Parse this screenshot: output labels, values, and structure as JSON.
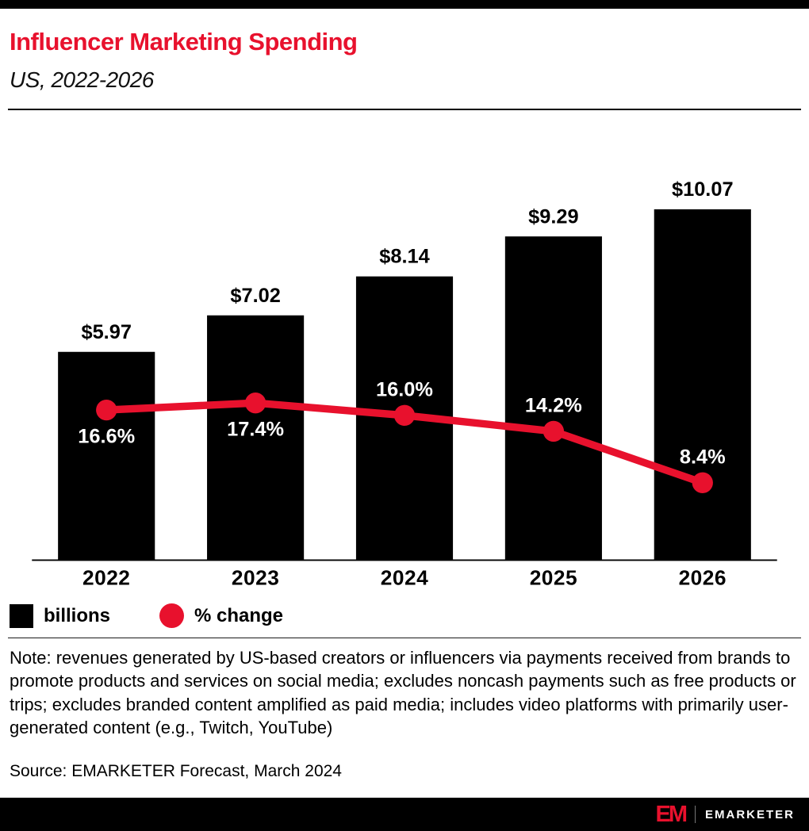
{
  "header": {
    "title": "Influencer Marketing Spending",
    "subtitle": "US, 2022-2026"
  },
  "chart_data": {
    "type": "bar",
    "title": "Influencer Marketing Spending, US, 2022-2026",
    "categories": [
      "2022",
      "2023",
      "2024",
      "2025",
      "2026"
    ],
    "series": [
      {
        "name": "billions",
        "type": "bar",
        "values": [
          5.97,
          7.02,
          8.14,
          9.29,
          10.07
        ],
        "labels": [
          "$5.97",
          "$7.02",
          "$8.14",
          "$9.29",
          "$10.07"
        ],
        "color": "#000000"
      },
      {
        "name": "% change",
        "type": "line",
        "values": [
          16.6,
          17.4,
          16.0,
          14.2,
          8.4
        ],
        "labels": [
          "16.6%",
          "17.4%",
          "16.0%",
          "14.2%",
          "8.4%"
        ],
        "label_positions": [
          "below",
          "below",
          "above",
          "above",
          "above"
        ],
        "color": "#e8112d"
      }
    ],
    "ylim": [
      0,
      10.8
    ],
    "line_ylim": [
      0,
      42
    ],
    "grid": false,
    "legend_position": "bottom-left"
  },
  "legend": [
    {
      "label": "billions",
      "swatch": "square",
      "color": "#000000"
    },
    {
      "label": "% change",
      "swatch": "circle",
      "color": "#e8112d"
    }
  ],
  "note": "Note: revenues generated by US-based creators or influencers via payments received from brands to promote products and services on social media; excludes noncash payments such as free products or trips; excludes branded content amplified as paid media; includes video platforms with primarily user-generated content (e.g., Twitch, YouTube)",
  "source": "Source: EMARKETER Forecast, March 2024",
  "footer": {
    "monogram": "EM",
    "brand": "EMARKETER"
  }
}
